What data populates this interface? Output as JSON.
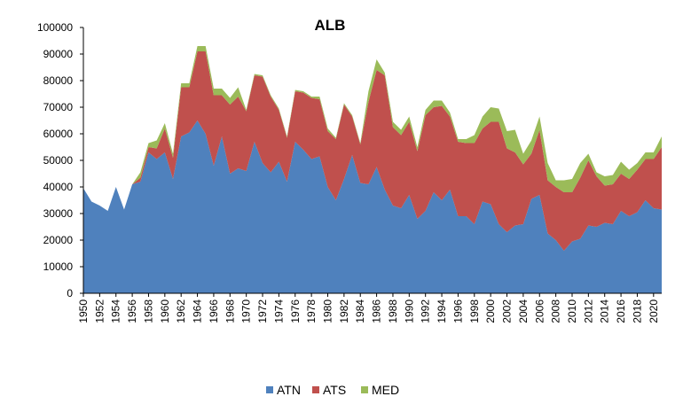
{
  "chart_data": {
    "type": "area",
    "stacked": true,
    "title": "ALB",
    "xlabel": "",
    "ylabel": "",
    "ylim": [
      0,
      100000
    ],
    "yticks": [
      0,
      10000,
      20000,
      30000,
      40000,
      50000,
      60000,
      70000,
      80000,
      90000,
      100000
    ],
    "xlim": [
      1950,
      2021
    ],
    "x_tick_labels": [
      "1950",
      "1952",
      "1954",
      "1956",
      "1958",
      "1960",
      "1962",
      "1964",
      "1966",
      "1968",
      "1970",
      "1972",
      "1974",
      "1976",
      "1978",
      "1980",
      "1982",
      "1984",
      "1986",
      "1988",
      "1990",
      "1992",
      "1994",
      "1996",
      "1998",
      "2000",
      "2002",
      "2004",
      "2006",
      "2008",
      "2010",
      "2012",
      "2014",
      "2016",
      "2018",
      "2020"
    ],
    "grid": false,
    "legend_position": "bottom",
    "x": [
      1950,
      1951,
      1952,
      1953,
      1954,
      1955,
      1956,
      1957,
      1958,
      1959,
      1960,
      1961,
      1962,
      1963,
      1964,
      1965,
      1966,
      1967,
      1968,
      1969,
      1970,
      1971,
      1972,
      1973,
      1974,
      1975,
      1976,
      1977,
      1978,
      1979,
      1980,
      1981,
      1982,
      1983,
      1984,
      1985,
      1986,
      1987,
      1988,
      1989,
      1990,
      1991,
      1992,
      1993,
      1994,
      1995,
      1996,
      1997,
      1998,
      1999,
      2000,
      2001,
      2002,
      2003,
      2004,
      2005,
      2006,
      2007,
      2008,
      2009,
      2010,
      2011,
      2012,
      2013,
      2014,
      2015,
      2016,
      2017,
      2018,
      2019,
      2020,
      2021
    ],
    "series": [
      {
        "name": "ATN",
        "color": "#4F81BD",
        "values": [
          39500,
          34500,
          33000,
          31000,
          40000,
          31500,
          41000,
          42000,
          53000,
          50500,
          53000,
          43000,
          59000,
          60500,
          65000,
          60000,
          48000,
          59000,
          45000,
          47000,
          46000,
          57000,
          49000,
          45500,
          49500,
          42000,
          57000,
          54000,
          50500,
          51500,
          40000,
          35000,
          43000,
          52000,
          41500,
          41000,
          47500,
          39000,
          33000,
          32000,
          37000,
          28000,
          31000,
          38000,
          35000,
          39000,
          29000,
          29000,
          26000,
          34500,
          33500,
          26000,
          23000,
          25500,
          26000,
          35500,
          37000,
          22500,
          20000,
          16000,
          19500,
          20500,
          25500,
          25000,
          26500,
          26000,
          31000,
          29000,
          30500,
          35000,
          32000,
          31500
        ]
      },
      {
        "name": "ATS",
        "color": "#C0504D",
        "values": [
          0,
          0,
          0,
          0,
          0,
          0,
          0,
          1500,
          2000,
          4000,
          9000,
          8000,
          18500,
          17000,
          26000,
          31000,
          26500,
          15500,
          26000,
          27000,
          22500,
          25000,
          32500,
          28500,
          19500,
          16500,
          19000,
          21500,
          23000,
          21500,
          21000,
          23000,
          28000,
          14500,
          14500,
          31000,
          36500,
          43000,
          29500,
          27500,
          27500,
          25500,
          36000,
          32000,
          35500,
          27500,
          28000,
          27500,
          30500,
          27500,
          31000,
          38500,
          31500,
          27500,
          22500,
          17000,
          24500,
          20000,
          20000,
          22000,
          18500,
          23000,
          24500,
          19000,
          14000,
          15000,
          14000,
          14000,
          16000,
          15500,
          18500,
          23500
        ]
      },
      {
        "name": "MED",
        "color": "#9BBB59",
        "values": [
          0,
          0,
          0,
          0,
          0,
          0,
          0,
          2000,
          1500,
          3000,
          2000,
          1500,
          1500,
          1500,
          2000,
          2000,
          2500,
          2500,
          2500,
          3500,
          500,
          500,
          500,
          500,
          500,
          500,
          500,
          500,
          500,
          1000,
          1000,
          500,
          500,
          500,
          500,
          4000,
          4000,
          1000,
          2000,
          2000,
          2000,
          1500,
          2000,
          2500,
          2000,
          1500,
          1000,
          1500,
          3000,
          4500,
          5500,
          5000,
          6500,
          8500,
          4000,
          5000,
          5000,
          6500,
          2500,
          4500,
          5000,
          5500,
          2500,
          1500,
          3500,
          3500,
          4500,
          3500,
          2500,
          2500,
          2500,
          4000
        ]
      }
    ]
  }
}
